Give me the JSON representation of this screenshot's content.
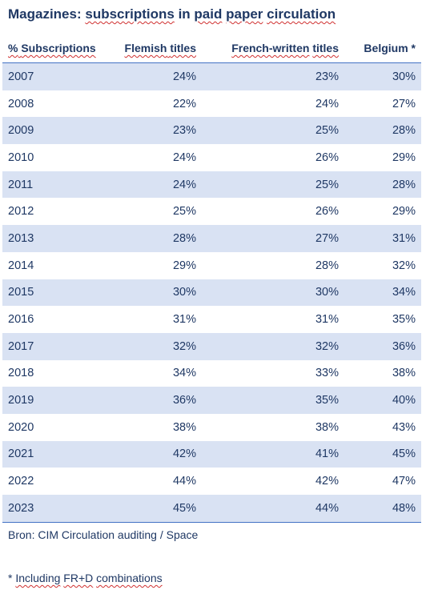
{
  "title": {
    "word1": "Magazines:",
    "word2": "subscriptions",
    "word3": "in",
    "word4": "paid",
    "word5": "paper",
    "word6": "circulation"
  },
  "table": {
    "headers": {
      "col1_pct": "%",
      "col1_word": "Subscriptions",
      "col2_w1": "Flemish",
      "col2_w2": "titles",
      "col3_w1": "French-written",
      "col3_w2": "titles",
      "col4": "Belgium *"
    },
    "rows": [
      {
        "year": "2007",
        "flemish": "24%",
        "french": "23%",
        "belgium": "30%"
      },
      {
        "year": "2008",
        "flemish": "22%",
        "french": "24%",
        "belgium": "27%"
      },
      {
        "year": "2009",
        "flemish": "23%",
        "french": "25%",
        "belgium": "28%"
      },
      {
        "year": "2010",
        "flemish": "24%",
        "french": "26%",
        "belgium": "29%"
      },
      {
        "year": "2011",
        "flemish": "24%",
        "french": "25%",
        "belgium": "28%"
      },
      {
        "year": "2012",
        "flemish": "25%",
        "french": "26%",
        "belgium": "29%"
      },
      {
        "year": "2013",
        "flemish": "28%",
        "french": "27%",
        "belgium": "31%"
      },
      {
        "year": "2014",
        "flemish": "29%",
        "french": "28%",
        "belgium": "32%"
      },
      {
        "year": "2015",
        "flemish": "30%",
        "french": "30%",
        "belgium": "34%"
      },
      {
        "year": "2016",
        "flemish": "31%",
        "french": "31%",
        "belgium": "35%"
      },
      {
        "year": "2017",
        "flemish": "32%",
        "french": "32%",
        "belgium": "36%"
      },
      {
        "year": "2018",
        "flemish": "34%",
        "french": "33%",
        "belgium": "38%"
      },
      {
        "year": "2019",
        "flemish": "36%",
        "french": "35%",
        "belgium": "40%"
      },
      {
        "year": "2020",
        "flemish": "38%",
        "french": "38%",
        "belgium": "43%"
      },
      {
        "year": "2021",
        "flemish": "42%",
        "french": "41%",
        "belgium": "45%"
      },
      {
        "year": "2022",
        "flemish": "44%",
        "french": "42%",
        "belgium": "47%"
      },
      {
        "year": "2023",
        "flemish": "45%",
        "french": "44%",
        "belgium": "48%"
      }
    ]
  },
  "footer": {
    "source": "Bron: CIM Circulation auditing / Space",
    "note_star": "*",
    "note_w1": "Including",
    "note_w2": "FR+D",
    "note_w3": "combinations"
  },
  "colors": {
    "title": "#1f3864",
    "row_shade": "#d9e2f3",
    "rule": "#4472c4",
    "spellcheck": "#d03030"
  }
}
